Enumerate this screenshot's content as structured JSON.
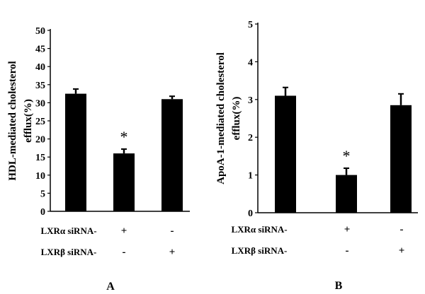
{
  "chart_data": [
    {
      "type": "bar",
      "panel_label": "A",
      "ylabel_lines": [
        "HDL-mediated cholesterol",
        "efflux(%)"
      ],
      "ylim": [
        0,
        50
      ],
      "yticks": [
        0,
        5,
        10,
        15,
        20,
        25,
        30,
        35,
        40,
        45,
        50
      ],
      "tick_labels": [
        "0",
        "5",
        "10",
        "15",
        "20",
        "25",
        "30",
        "35",
        "40",
        "45",
        "50"
      ],
      "grid": false,
      "values": [
        32.5,
        16.0,
        31.0
      ],
      "errors": [
        1.3,
        1.2,
        0.8
      ],
      "annotations": [
        "",
        "*",
        ""
      ],
      "conditions": [
        {
          "label": "LXRα siRNA-",
          "signs": [
            "",
            "+",
            "-"
          ]
        },
        {
          "label": "LXRβ siRNA-",
          "signs": [
            "",
            "-",
            "+"
          ]
        }
      ]
    },
    {
      "type": "bar",
      "panel_label": "B",
      "ylabel_lines": [
        "ApoA-1-mediated cholesterol",
        "efflux(%)"
      ],
      "ylim": [
        0,
        5
      ],
      "yticks": [
        0,
        1,
        2,
        3,
        4,
        5
      ],
      "tick_labels": [
        "0",
        "1",
        "2",
        "3",
        "4",
        "5"
      ],
      "grid": false,
      "values": [
        3.1,
        1.0,
        2.85
      ],
      "errors": [
        0.22,
        0.18,
        0.3
      ],
      "annotations": [
        "",
        "*",
        ""
      ],
      "conditions": [
        {
          "label": "LXRα siRNA-",
          "signs": [
            "",
            "+",
            "-"
          ]
        },
        {
          "label": "LXRβ siRNA-",
          "signs": [
            "",
            "-",
            "+"
          ]
        }
      ]
    }
  ]
}
